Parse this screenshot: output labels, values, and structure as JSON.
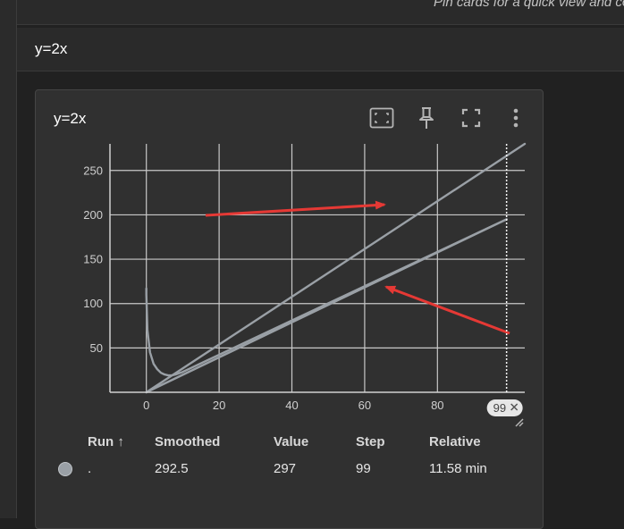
{
  "top_hint": "Pin cards for a quick view and co",
  "group": {
    "title": "y=2x"
  },
  "card": {
    "title": "y=2x",
    "icons": [
      "fit-to-screen-icon",
      "pin-icon",
      "fullscreen-icon",
      "more-vert-icon"
    ]
  },
  "chart_data": {
    "type": "line",
    "title": "y=2x",
    "xlim": [
      -10,
      104
    ],
    "ylim": [
      0,
      280
    ],
    "x_ticks": [
      "0",
      "20",
      "40",
      "60",
      "80"
    ],
    "y_ticks": [
      "250",
      "200",
      "150",
      "100",
      "50"
    ],
    "grid": true,
    "series": [
      {
        "x": [
          0,
          104
        ],
        "y": [
          0,
          280
        ]
      },
      {
        "x": [
          0,
          99
        ],
        "y": [
          0,
          195
        ]
      },
      {
        "x": [
          0,
          0,
          0.3,
          1,
          2,
          3,
          4,
          5,
          6,
          7,
          8,
          10,
          99
        ],
        "y": [
          117,
          110,
          70,
          45,
          32,
          26,
          22,
          20,
          19,
          19,
          20,
          23,
          195
        ]
      }
    ],
    "cursor_step": 99,
    "cursor_label": "99"
  },
  "table": {
    "headers": {
      "run": "Run",
      "smoothed": "Smoothed",
      "value": "Value",
      "step": "Step",
      "relative": "Relative"
    },
    "row": {
      "run": ".",
      "smoothed": "292.5",
      "value": "297",
      "step": "99",
      "relative": "11.58 min",
      "color": "#9aa0a6"
    }
  },
  "colors": {
    "accent_arrow": "#e53935",
    "series": "#9aa0a6",
    "grid": "#c8c8c8"
  }
}
